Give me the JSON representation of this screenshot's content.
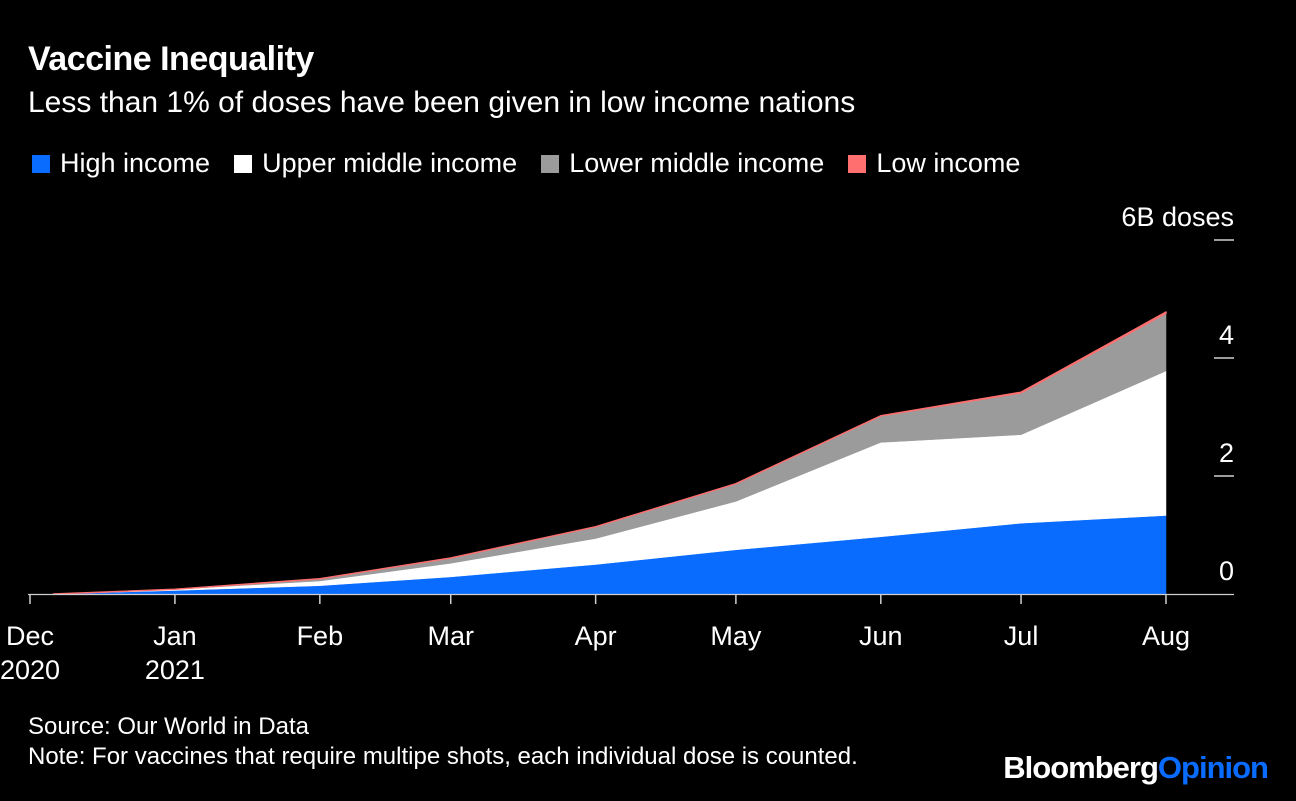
{
  "header": {
    "title": "Vaccine Inequality",
    "subtitle": "Less than 1% of doses have been given in low income nations"
  },
  "legend": [
    {
      "label": "High income",
      "color": "#0a6cff"
    },
    {
      "label": "Upper middle income",
      "color": "#ffffff"
    },
    {
      "label": "Lower middle income",
      "color": "#9b9b9b"
    },
    {
      "label": "Low income",
      "color": "#ff6f6f"
    }
  ],
  "footer": {
    "source": "Source: Our World in Data",
    "note": "Note: For vaccines that require multipe shots, each individual dose is counted."
  },
  "brand": {
    "name": "Bloomberg",
    "suffix": "Opinion"
  },
  "chart_data": {
    "type": "area",
    "stacked": true,
    "title": "Vaccine Inequality",
    "subtitle": "Less than 1% of doses have been given in low income nations",
    "xlabel": "",
    "ylabel": "",
    "y_axis_title": "6B doses",
    "ylim": [
      0,
      6
    ],
    "y_ticks": [
      0,
      2,
      4,
      6
    ],
    "y_tick_labels": [
      "0",
      "2",
      "4",
      "6B doses"
    ],
    "y_axis_side": "right",
    "grid": false,
    "legend_position": "top-left",
    "x": [
      "2020-12-06",
      "2021-01-01",
      "2021-02-01",
      "2021-03-01",
      "2021-04-01",
      "2021-05-01",
      "2021-06-01",
      "2021-07-01",
      "2021-08-01"
    ],
    "x_ticks": [
      {
        "date": "2020-12-01",
        "label": "Dec",
        "sublabel": "2020"
      },
      {
        "date": "2021-01-01",
        "label": "Jan",
        "sublabel": "2021"
      },
      {
        "date": "2021-02-01",
        "label": "Feb",
        "sublabel": ""
      },
      {
        "date": "2021-03-01",
        "label": "Mar",
        "sublabel": ""
      },
      {
        "date": "2021-04-01",
        "label": "Apr",
        "sublabel": ""
      },
      {
        "date": "2021-05-01",
        "label": "May",
        "sublabel": ""
      },
      {
        "date": "2021-06-01",
        "label": "Jun",
        "sublabel": ""
      },
      {
        "date": "2021-07-01",
        "label": "Jul",
        "sublabel": ""
      },
      {
        "date": "2021-08-01",
        "label": "Aug",
        "sublabel": ""
      }
    ],
    "x_range": [
      "2020-12-01",
      "2021-08-04"
    ],
    "series": [
      {
        "name": "High income",
        "color": "#0a6cff",
        "values": [
          0.0,
          0.06,
          0.14,
          0.29,
          0.5,
          0.75,
          0.97,
          1.2,
          1.33
        ]
      },
      {
        "name": "Upper middle income",
        "color": "#ffffff",
        "values": [
          0.0,
          0.02,
          0.08,
          0.23,
          0.44,
          0.82,
          1.6,
          1.5,
          2.45
        ]
      },
      {
        "name": "Lower middle income",
        "color": "#9b9b9b",
        "values": [
          0.0,
          0.0,
          0.04,
          0.09,
          0.2,
          0.3,
          0.45,
          0.71,
          0.98
        ]
      },
      {
        "name": "Low income",
        "color": "#ff6f6f",
        "values": [
          0.0,
          0.0,
          0.0,
          0.0,
          0.0,
          0.0,
          0.0,
          0.01,
          0.02
        ]
      }
    ]
  }
}
